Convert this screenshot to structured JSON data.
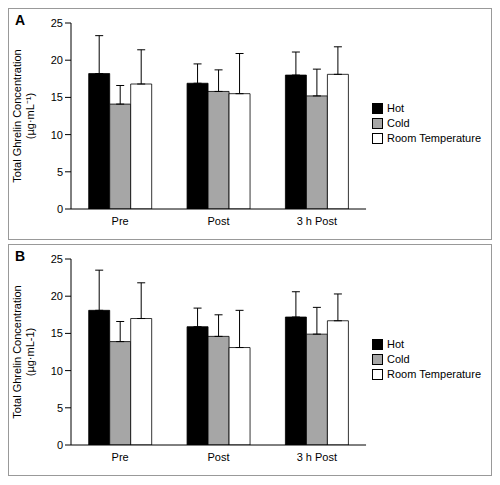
{
  "chart_data": [
    {
      "type": "bar",
      "title": "A",
      "y_label": "Total Ghrelin Concentration (µg·mL⁻¹)",
      "categories": [
        "Pre",
        "Post",
        "3 h Post"
      ],
      "ylim": [
        0,
        25
      ],
      "yticks": [
        0,
        5,
        10,
        15,
        20,
        25
      ],
      "grid": false,
      "legend": "right",
      "series": [
        {
          "name": "Hot",
          "color": "#000000",
          "values": [
            18.2,
            16.9,
            18.0
          ],
          "errors": [
            5.1,
            2.6,
            3.1
          ]
        },
        {
          "name": "Cold",
          "color": "#a6a6a6",
          "values": [
            14.1,
            15.8,
            15.2
          ],
          "errors": [
            2.5,
            2.9,
            3.6
          ]
        },
        {
          "name": "Room Temperature",
          "color": "#ffffff",
          "values": [
            16.8,
            15.5,
            18.1
          ],
          "errors": [
            4.6,
            5.4,
            3.7
          ]
        }
      ]
    },
    {
      "type": "bar",
      "title": "B",
      "y_label": "Total Ghrelin Concentration (µg·mL-1)",
      "categories": [
        "Pre",
        "Post",
        "3 h Post"
      ],
      "ylim": [
        0,
        25
      ],
      "yticks": [
        0,
        5,
        10,
        15,
        20,
        25
      ],
      "grid": false,
      "legend": "right",
      "series": [
        {
          "name": "Hot",
          "color": "#000000",
          "values": [
            18.1,
            15.9,
            17.2
          ],
          "errors": [
            5.4,
            2.5,
            3.4
          ]
        },
        {
          "name": "Cold",
          "color": "#a6a6a6",
          "values": [
            13.9,
            14.6,
            14.9
          ],
          "errors": [
            2.7,
            2.9,
            3.6
          ]
        },
        {
          "name": "Room Temperature",
          "color": "#ffffff",
          "values": [
            17.0,
            13.1,
            16.7
          ],
          "errors": [
            4.8,
            5.0,
            3.6
          ]
        }
      ]
    }
  ]
}
